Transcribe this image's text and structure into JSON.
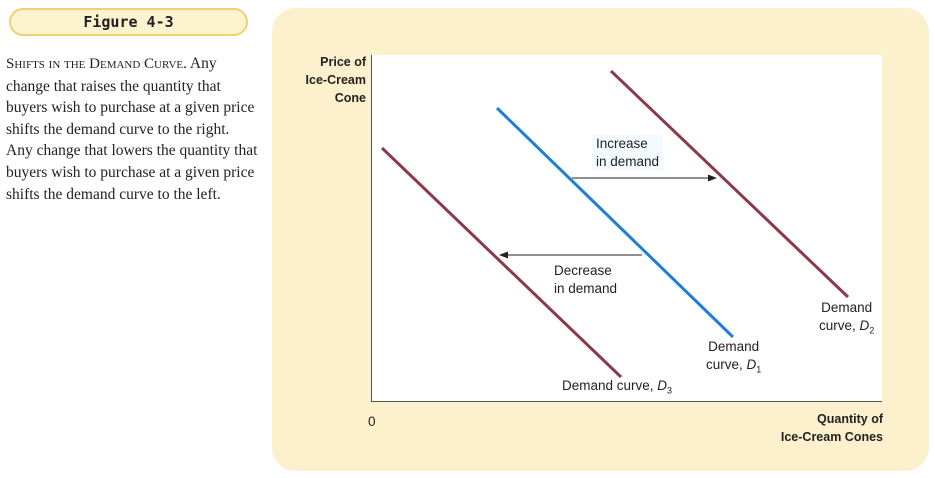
{
  "figure": {
    "label": "Figure 4-3",
    "caption_title": "Shifts in the Demand Curve.",
    "caption_body": "Any change that raises the quantity that buyers wish to purchase at a given price shifts the demand curve to the right. Any change that lowers the quantity that buyers wish to purchase at a given price shifts the demand curve to the left."
  },
  "diagram": {
    "y_axis_label": [
      "Price of",
      "Ice-Cream",
      "Cone"
    ],
    "x_axis_label": [
      "Quantity of",
      "Ice-Cream Cones"
    ],
    "origin_label": "0",
    "curves": [
      {
        "id": "d3",
        "label": "Demand curve, D3",
        "label_text": "Demand curve, ",
        "sub": "3",
        "color": "#8b3a4a"
      },
      {
        "id": "d1",
        "label_line1": "Demand",
        "label_line2": "curve, ",
        "sub": "1",
        "color": "#1f7fd6"
      },
      {
        "id": "d2",
        "label_line1": "Demand",
        "label_line2": "curve, ",
        "sub": "2",
        "color": "#8b3a4a"
      }
    ],
    "annotations": {
      "increase": [
        "Increase",
        "in demand"
      ],
      "decrease": [
        "Decrease",
        "in demand"
      ]
    },
    "axis_color": "#555555"
  }
}
